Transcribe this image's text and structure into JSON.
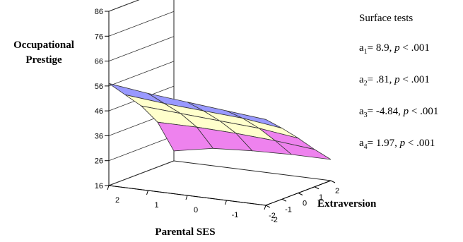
{
  "chart_data": {
    "type": "surface",
    "zlabel": "Occupational Prestige",
    "xlabel": "Parental SES",
    "ylabel": "Extraversion",
    "z_ticks": [
      "16",
      "26",
      "36",
      "46",
      "56",
      "66",
      "76",
      "86"
    ],
    "zlim": [
      16,
      86
    ],
    "x_ticks": [
      "2",
      "1",
      "0",
      "-1",
      "-2"
    ],
    "y_ticks": [
      "-2",
      "-1",
      "0",
      "1",
      "2"
    ],
    "x": [
      2,
      1,
      0,
      -1,
      -2
    ],
    "y": [
      -2,
      -1,
      0,
      1,
      2
    ],
    "z_grid": [
      [
        57,
        55,
        53.5,
        52,
        50.5
      ],
      [
        50,
        48.5,
        47.5,
        46.5,
        44.5
      ],
      [
        43,
        42,
        41,
        40,
        38
      ],
      [
        34,
        34,
        33.5,
        32.5,
        31
      ],
      [
        20,
        23,
        24,
        24.5,
        24.5
      ]
    ],
    "color_bands": [
      {
        "range": [
          16,
          36
        ],
        "color": "#ee82ee"
      },
      {
        "range": [
          36,
          46
        ],
        "color": "#ffffcc"
      },
      {
        "range": [
          46,
          56
        ],
        "color": "#9999ff"
      },
      {
        "range": [
          56,
          66
        ],
        "color": "#9999ff"
      }
    ],
    "grid": true
  },
  "tests": {
    "title": "Surface tests",
    "items": [
      {
        "prefix": "a",
        "sub": "1",
        "value": "= 8.9, ",
        "p": "p",
        "rest": " < .001"
      },
      {
        "prefix": "a",
        "sub": "2",
        "value": "= .81, ",
        "p": "p",
        "rest": " < .001"
      },
      {
        "prefix": "a",
        "sub": "3",
        "value": "= -4.84, ",
        "p": "p",
        "rest": " < .001"
      },
      {
        "prefix": "a",
        "sub": "4",
        "value": "= 1.97, ",
        "p": "p",
        "rest": " < .001"
      }
    ]
  }
}
